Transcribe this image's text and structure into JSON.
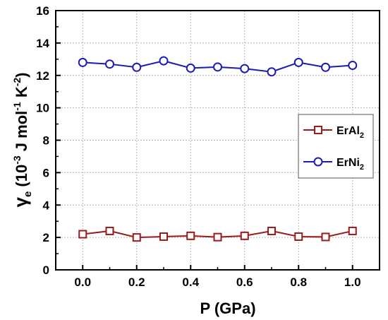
{
  "chart_data": {
    "type": "line",
    "x": [
      0.0,
      0.1,
      0.2,
      0.3,
      0.4,
      0.5,
      0.6,
      0.7,
      0.8,
      0.9,
      1.0
    ],
    "xlim": [
      -0.1,
      1.1
    ],
    "ylim": [
      0,
      16
    ],
    "x_ticks": [
      "0.0",
      "0.2",
      "0.4",
      "0.6",
      "0.8",
      "1.0"
    ],
    "y_ticks": [
      "0",
      "2",
      "4",
      "6",
      "8",
      "10",
      "12",
      "14",
      "16"
    ],
    "xlabel": "P (GPa)",
    "ylabel": {
      "symbol": "γ",
      "symbol_sub": "e",
      "open": " (10",
      "exp1": "-3",
      "mid": " J mol",
      "exp2": "-1",
      "mid2": " K",
      "exp3": "-2",
      "close": ")"
    },
    "grid": true,
    "legend_position": "right",
    "series": [
      {
        "name": "ErAl2",
        "legend_main": "ErAl",
        "legend_sub": "2",
        "marker": "square",
        "color": "#9b1b1b",
        "values": [
          2.2,
          2.4,
          2.0,
          2.05,
          2.1,
          2.02,
          2.1,
          2.4,
          2.05,
          2.03,
          2.4
        ]
      },
      {
        "name": "ErNi2",
        "legend_main": "ErNi",
        "legend_sub": "2",
        "marker": "circle",
        "color": "#1c1cb0",
        "values": [
          12.8,
          12.7,
          12.5,
          12.9,
          12.45,
          12.52,
          12.42,
          12.22,
          12.8,
          12.5,
          12.62
        ]
      }
    ]
  }
}
